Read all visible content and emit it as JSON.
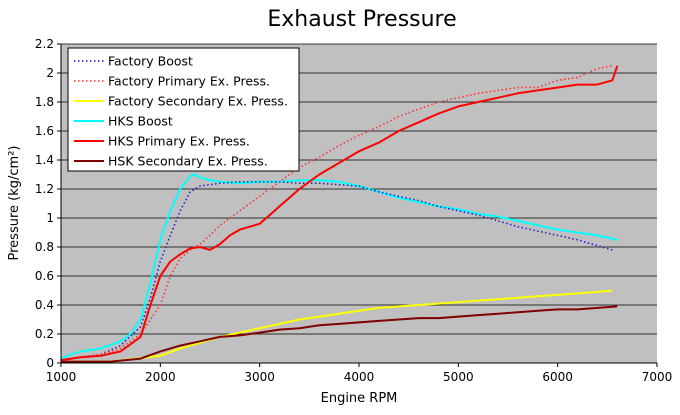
{
  "chart_data": {
    "type": "line",
    "title": "Exhaust Pressure",
    "xlabel": "Engine RPM",
    "ylabel": "Pressure (kg/cm²)",
    "xlim": [
      1000,
      7000
    ],
    "ylim": [
      0,
      2.2
    ],
    "xticks": [
      "1000",
      "2000",
      "3000",
      "4000",
      "5000",
      "6000",
      "7000"
    ],
    "yticks": [
      "0",
      "0.2",
      "0.4",
      "0.6",
      "0.8",
      "1",
      "1.2",
      "1.4",
      "1.6",
      "1.8",
      "2",
      "2.2"
    ],
    "grid": "horizontal",
    "background": "#c0c0c0",
    "legend_position": "top-left",
    "series": [
      {
        "name": "Factory Boost",
        "color": "#2222cc",
        "style": "dotted",
        "x": [
          1000,
          1200,
          1400,
          1600,
          1800,
          1900,
          2000,
          2100,
          2200,
          2300,
          2400,
          2500,
          2600,
          2800,
          3000,
          3200,
          3400,
          3600,
          3800,
          4000,
          4200,
          4400,
          4600,
          4800,
          5000,
          5200,
          5400,
          5600,
          5800,
          6000,
          6200,
          6400,
          6550
        ],
        "y": [
          0.02,
          0.04,
          0.06,
          0.12,
          0.25,
          0.45,
          0.7,
          0.88,
          1.05,
          1.18,
          1.22,
          1.23,
          1.24,
          1.25,
          1.25,
          1.25,
          1.24,
          1.24,
          1.23,
          1.22,
          1.18,
          1.15,
          1.12,
          1.08,
          1.05,
          1.02,
          0.98,
          0.94,
          0.91,
          0.88,
          0.85,
          0.81,
          0.78
        ]
      },
      {
        "name": "Factory Primary Ex. Press.",
        "color": "#ff3333",
        "style": "dotted",
        "x": [
          1000,
          1200,
          1400,
          1600,
          1800,
          2000,
          2100,
          2200,
          2300,
          2400,
          2500,
          2600,
          2800,
          3000,
          3200,
          3400,
          3600,
          3800,
          4000,
          4200,
          4400,
          4600,
          4800,
          5000,
          5200,
          5400,
          5600,
          5800,
          6000,
          6200,
          6400,
          6550
        ],
        "y": [
          0.02,
          0.04,
          0.06,
          0.1,
          0.2,
          0.4,
          0.6,
          0.72,
          0.78,
          0.82,
          0.88,
          0.95,
          1.05,
          1.15,
          1.25,
          1.35,
          1.42,
          1.5,
          1.57,
          1.63,
          1.7,
          1.75,
          1.8,
          1.83,
          1.86,
          1.88,
          1.9,
          1.9,
          1.95,
          1.97,
          2.03,
          2.05
        ]
      },
      {
        "name": "Factory Secondary Ex. Press.",
        "color": "#ffff00",
        "style": "solid",
        "x": [
          1000,
          1500,
          2000,
          2200,
          2400,
          2600,
          2800,
          3000,
          3200,
          3400,
          3600,
          3800,
          4000,
          4200,
          4400,
          4600,
          4800,
          5000,
          5200,
          5400,
          5600,
          5800,
          6000,
          6200,
          6400,
          6550
        ],
        "y": [
          0.01,
          0.01,
          0.05,
          0.1,
          0.14,
          0.18,
          0.21,
          0.24,
          0.27,
          0.3,
          0.32,
          0.34,
          0.36,
          0.38,
          0.39,
          0.4,
          0.41,
          0.42,
          0.43,
          0.44,
          0.45,
          0.46,
          0.47,
          0.48,
          0.49,
          0.5
        ]
      },
      {
        "name": "HKS Boost",
        "color": "#00ffff",
        "style": "solid",
        "x": [
          1000,
          1100,
          1200,
          1400,
          1600,
          1700,
          1800,
          1900,
          2000,
          2100,
          2200,
          2300,
          2350,
          2400,
          2500,
          2600,
          2800,
          3000,
          3200,
          3400,
          3600,
          3800,
          4000,
          4200,
          4400,
          4600,
          4800,
          5000,
          5200,
          5400,
          5600,
          5800,
          6000,
          6200,
          6400,
          6600
        ],
        "y": [
          0.03,
          0.06,
          0.08,
          0.1,
          0.15,
          0.2,
          0.3,
          0.55,
          0.85,
          1.05,
          1.2,
          1.29,
          1.3,
          1.28,
          1.26,
          1.25,
          1.24,
          1.25,
          1.25,
          1.26,
          1.26,
          1.25,
          1.22,
          1.18,
          1.14,
          1.11,
          1.08,
          1.06,
          1.03,
          1.01,
          0.98,
          0.95,
          0.92,
          0.9,
          0.88,
          0.85
        ]
      },
      {
        "name": "HKS Primary Ex. Press.",
        "color": "#ff0000",
        "style": "solid",
        "x": [
          1000,
          1200,
          1400,
          1600,
          1800,
          1900,
          2000,
          2100,
          2200,
          2300,
          2400,
          2500,
          2600,
          2700,
          2800,
          3000,
          3100,
          3200,
          3400,
          3600,
          3800,
          4000,
          4200,
          4400,
          4600,
          4800,
          5000,
          5200,
          5400,
          5600,
          5800,
          6000,
          6200,
          6400,
          6550,
          6600
        ],
        "y": [
          0.02,
          0.04,
          0.05,
          0.08,
          0.18,
          0.4,
          0.6,
          0.7,
          0.75,
          0.79,
          0.8,
          0.78,
          0.82,
          0.88,
          0.92,
          0.96,
          1.02,
          1.08,
          1.2,
          1.3,
          1.38,
          1.46,
          1.52,
          1.6,
          1.66,
          1.72,
          1.77,
          1.8,
          1.83,
          1.86,
          1.88,
          1.9,
          1.92,
          1.92,
          1.95,
          2.05
        ]
      },
      {
        "name": "HSK Secondary Ex. Press.",
        "color": "#800000",
        "style": "solid",
        "x": [
          1000,
          1500,
          1800,
          2000,
          2200,
          2400,
          2600,
          2800,
          3000,
          3200,
          3400,
          3600,
          3800,
          4000,
          4200,
          4400,
          4600,
          4800,
          5000,
          5200,
          5400,
          5600,
          5800,
          6000,
          6200,
          6400,
          6600
        ],
        "y": [
          0.01,
          0.01,
          0.03,
          0.08,
          0.12,
          0.15,
          0.18,
          0.19,
          0.21,
          0.23,
          0.24,
          0.26,
          0.27,
          0.28,
          0.29,
          0.3,
          0.31,
          0.31,
          0.32,
          0.33,
          0.34,
          0.35,
          0.36,
          0.37,
          0.37,
          0.38,
          0.39
        ]
      }
    ]
  }
}
